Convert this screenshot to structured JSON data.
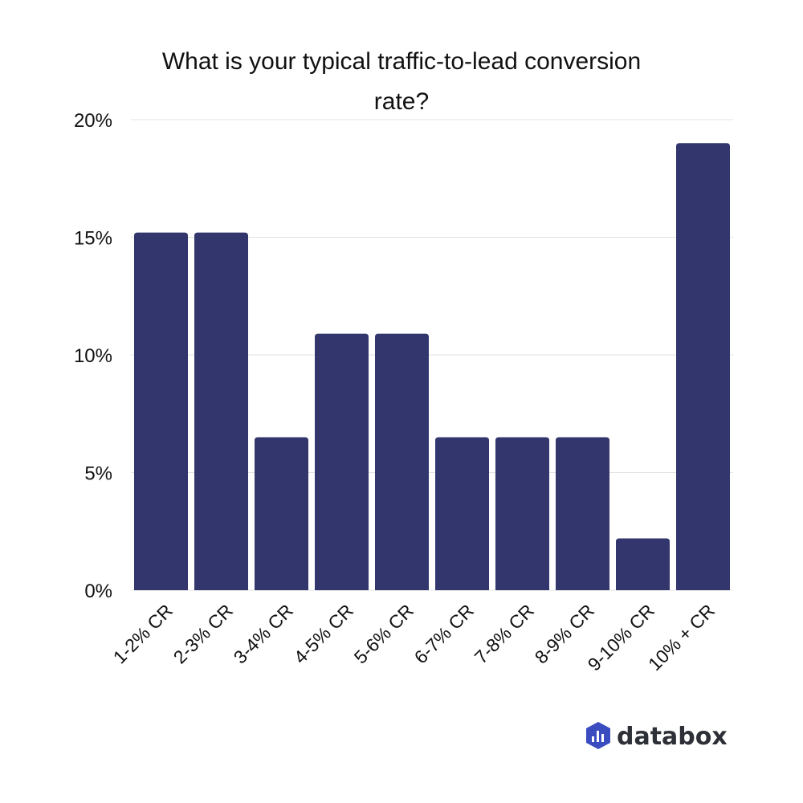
{
  "chart_data": {
    "type": "bar",
    "title": "What is your typical traffic-to-lead conversion rate?",
    "title_lines": [
      "What is your typical traffic-to-lead conversion",
      "rate?"
    ],
    "categories": [
      "1-2% CR",
      "2-3% CR",
      "3-4% CR",
      "4-5% CR",
      "5-6% CR",
      "6-7% CR",
      "7-8% CR",
      "8-9% CR",
      "9-10% CR",
      "10% + CR"
    ],
    "values": [
      15.2,
      15.2,
      6.5,
      10.9,
      10.9,
      6.5,
      6.5,
      6.5,
      2.2,
      19.0
    ],
    "xlabel": "",
    "ylabel": "",
    "ylim": [
      0,
      20
    ],
    "yticks": [
      0,
      5,
      10,
      15,
      20
    ],
    "ytick_labels": [
      "0%",
      "5%",
      "10%",
      "15%",
      "20%"
    ],
    "grid": true,
    "legend": "none",
    "bar_color": "#32366c"
  },
  "branding": {
    "logo_text": "databox",
    "logo_color": "#3b4cc0"
  }
}
